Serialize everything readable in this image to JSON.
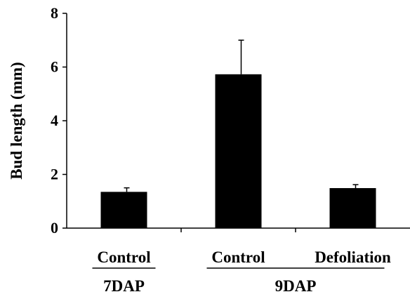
{
  "chart_data": {
    "type": "bar",
    "title": "",
    "xlabel": "",
    "ylabel": "Bud length (mm)",
    "ylim": [
      0,
      8
    ],
    "yticks": [
      "0",
      "2",
      "4",
      "6",
      "8"
    ],
    "grid": false,
    "legend": "none",
    "bar_color": "#000000",
    "categories": [
      "Control",
      "Control",
      "Defoliation"
    ],
    "groups": [
      {
        "label": "7DAP",
        "categories": [
          "Control"
        ]
      },
      {
        "label": "9DAP",
        "categories": [
          "Control",
          "Defoliation"
        ]
      }
    ],
    "values": [
      1.35,
      5.73,
      1.49
    ],
    "error_bars": [
      0.15,
      1.27,
      0.13
    ]
  }
}
